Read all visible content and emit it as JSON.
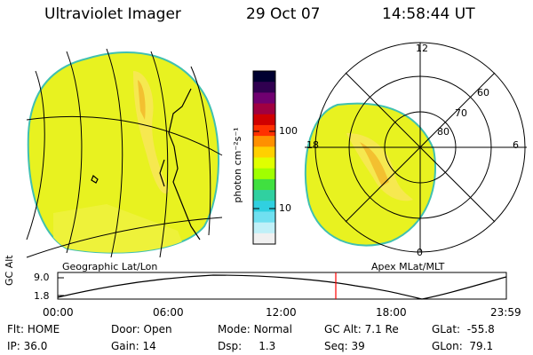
{
  "header": {
    "instrument": "Ultraviolet Imager",
    "date": "29 Oct 07",
    "time": "14:58:44 UT"
  },
  "colorbar": {
    "unit_label": "photon cm⁻²s⁻¹",
    "ticks": [
      "100",
      "10"
    ],
    "colors": [
      "#000030",
      "#300050",
      "#700070",
      "#a00040",
      "#d00000",
      "#ff3000",
      "#ff9000",
      "#ffd000",
      "#e0ff00",
      "#a0ff00",
      "#40e040",
      "#30d0a0",
      "#30d0e0",
      "#70e0f0",
      "#c0f0f8",
      "#f0f0f0"
    ]
  },
  "left_map": {
    "label": "Geographic Lat/Lon",
    "fill_color": "#e8f220"
  },
  "right_map": {
    "label": "Apex MLat/MLT",
    "mlt_labels": {
      "top": "12",
      "right": "6",
      "left": "18",
      "bottom": "0"
    },
    "lat_labels": [
      "60",
      "70",
      "80"
    ],
    "fill_color": "#e8f220"
  },
  "altitude_plot": {
    "axis_label": "GC Alt",
    "y_ticks": [
      "9.0",
      "1.8"
    ],
    "x_ticks": [
      "00:00",
      "06:00",
      "12:00",
      "18:00",
      "23:59"
    ],
    "marker_color": "#ff0000"
  },
  "status": {
    "flt_label": "Flt:",
    "flt_value": "HOME",
    "ip_label": "IP:",
    "ip_value": "36.0",
    "door_label": "Door:",
    "door_value": "Open",
    "gain_label": "Gain:",
    "gain_value": "14",
    "mode_label": "Mode:",
    "mode_value": "Normal",
    "dsp_label": "Dsp:",
    "dsp_value": "1.3",
    "gcalt_label": "GC Alt:",
    "gcalt_value": "7.1 Re",
    "seq_label": "Seq:",
    "seq_value": "39",
    "glat_label": "GLat:",
    "glat_value": "-55.8",
    "glon_label": "GLon:",
    "glon_value": "79.1"
  }
}
